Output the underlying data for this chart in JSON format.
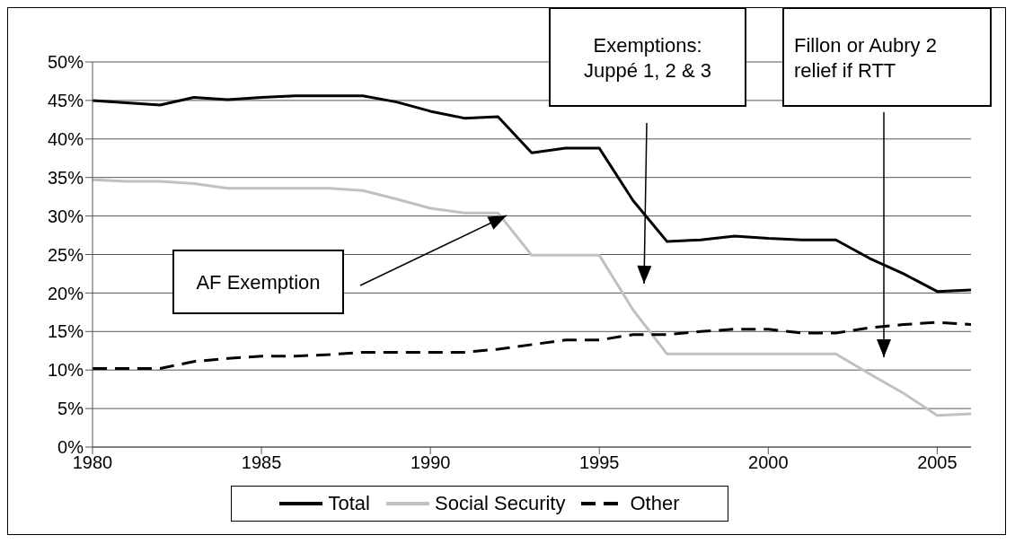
{
  "chart_data": {
    "type": "line",
    "x": [
      1980,
      1981,
      1982,
      1983,
      1984,
      1985,
      1986,
      1987,
      1988,
      1989,
      1990,
      1991,
      1992,
      1993,
      1994,
      1995,
      1996,
      1997,
      1998,
      1999,
      2000,
      2001,
      2002,
      2003,
      2004,
      2005,
      2006
    ],
    "series": [
      {
        "name": "Total",
        "color": "#000000",
        "line_style": "solid",
        "values": [
          45,
          44.7,
          44.4,
          45.4,
          45.1,
          45.4,
          45.6,
          45.6,
          45.6,
          44.8,
          43.6,
          42.7,
          42.9,
          38.2,
          38.8,
          38.8,
          32,
          26.7,
          26.9,
          27.4,
          27.1,
          26.9,
          26.9,
          24.5,
          22.5,
          20.2,
          20.4
        ]
      },
      {
        "name": "Social Security",
        "color": "#c0c0c0",
        "line_style": "solid",
        "values": [
          34.7,
          34.5,
          34.5,
          34.2,
          33.6,
          33.6,
          33.6,
          33.6,
          33.3,
          32.2,
          31.0,
          30.4,
          30.4,
          24.9,
          24.9,
          24.9,
          17.8,
          12.1,
          12.1,
          12.1,
          12.1,
          12.1,
          12.1,
          9.5,
          7,
          4.1,
          4.3
        ]
      },
      {
        "name": "Other",
        "color": "#000000",
        "line_style": "dashed",
        "values": [
          10.2,
          10.2,
          10.2,
          11.1,
          11.5,
          11.8,
          11.8,
          12.0,
          12.3,
          12.3,
          12.3,
          12.3,
          12.7,
          13.3,
          13.9,
          13.9,
          14.6,
          14.6,
          15.0,
          15.3,
          15.3,
          14.8,
          14.8,
          15.5,
          15.9,
          16.2,
          15.9
        ]
      }
    ],
    "xlim": [
      1980,
      2006
    ],
    "xticks": [
      1980,
      1985,
      1990,
      1995,
      2000,
      2005
    ],
    "ylim": [
      0,
      50
    ],
    "yticks": [
      {
        "value": 0,
        "label": "0%"
      },
      {
        "value": 5,
        "label": "5%"
      },
      {
        "value": 10,
        "label": "10%"
      },
      {
        "value": 15,
        "label": "15%"
      },
      {
        "value": 20,
        "label": "20%"
      },
      {
        "value": 25,
        "label": "25%"
      },
      {
        "value": 30,
        "label": "30%"
      },
      {
        "value": 35,
        "label": "35%"
      },
      {
        "value": 40,
        "label": "40%"
      },
      {
        "value": 45,
        "label": "45%"
      },
      {
        "value": 50,
        "label": "50%"
      }
    ],
    "grid": "y",
    "legend": "bottom",
    "marker": "none",
    "annotations": [
      "AF Exemption",
      "Exemptions:\nJuppé 1, 2 & 3",
      "Fillon or Aubry 2\nrelief if RTT"
    ]
  }
}
